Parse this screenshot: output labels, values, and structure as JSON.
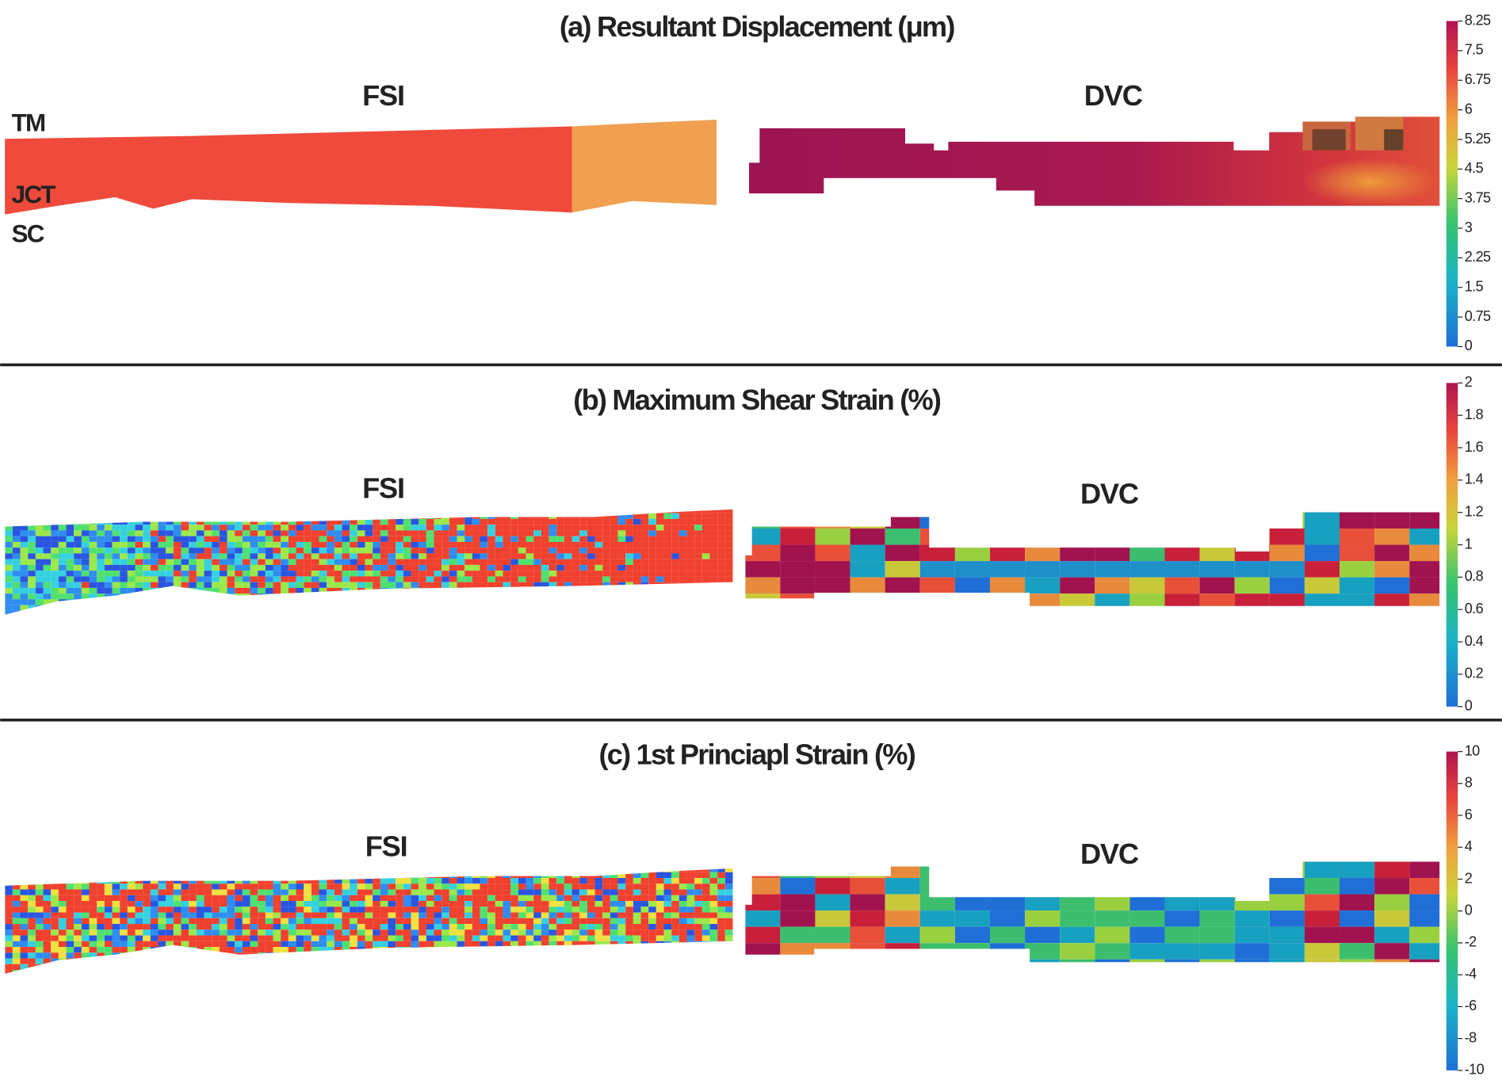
{
  "panels": [
    {
      "title": "(a) Resultant Displacement (μm)",
      "left_label": "FSI",
      "right_label": "DVC",
      "annotations": [
        "TM",
        "JCT",
        "SC"
      ],
      "colorbar": {
        "range": [
          0,
          8.25
        ],
        "ticks": [
          0,
          0.75,
          1.5,
          2.25,
          3,
          3.75,
          4.5,
          5.25,
          6,
          6.75,
          7.5,
          8.25
        ]
      }
    },
    {
      "title": "(b) Maximum Shear Strain (%)",
      "left_label": "FSI",
      "right_label": "DVC",
      "colorbar": {
        "range": [
          0,
          2
        ],
        "ticks": [
          0,
          0.2,
          0.4,
          0.6,
          0.8,
          1,
          1.2,
          1.4,
          1.6,
          1.8,
          2
        ]
      }
    },
    {
      "title": "(c) 1st Princiapl Strain (%)",
      "left_label": "FSI",
      "right_label": "DVC",
      "colorbar": {
        "range": [
          -10,
          10
        ],
        "ticks": [
          -10,
          -8,
          -6,
          -4,
          -2,
          0,
          2,
          4,
          6,
          8,
          10
        ]
      }
    }
  ]
}
